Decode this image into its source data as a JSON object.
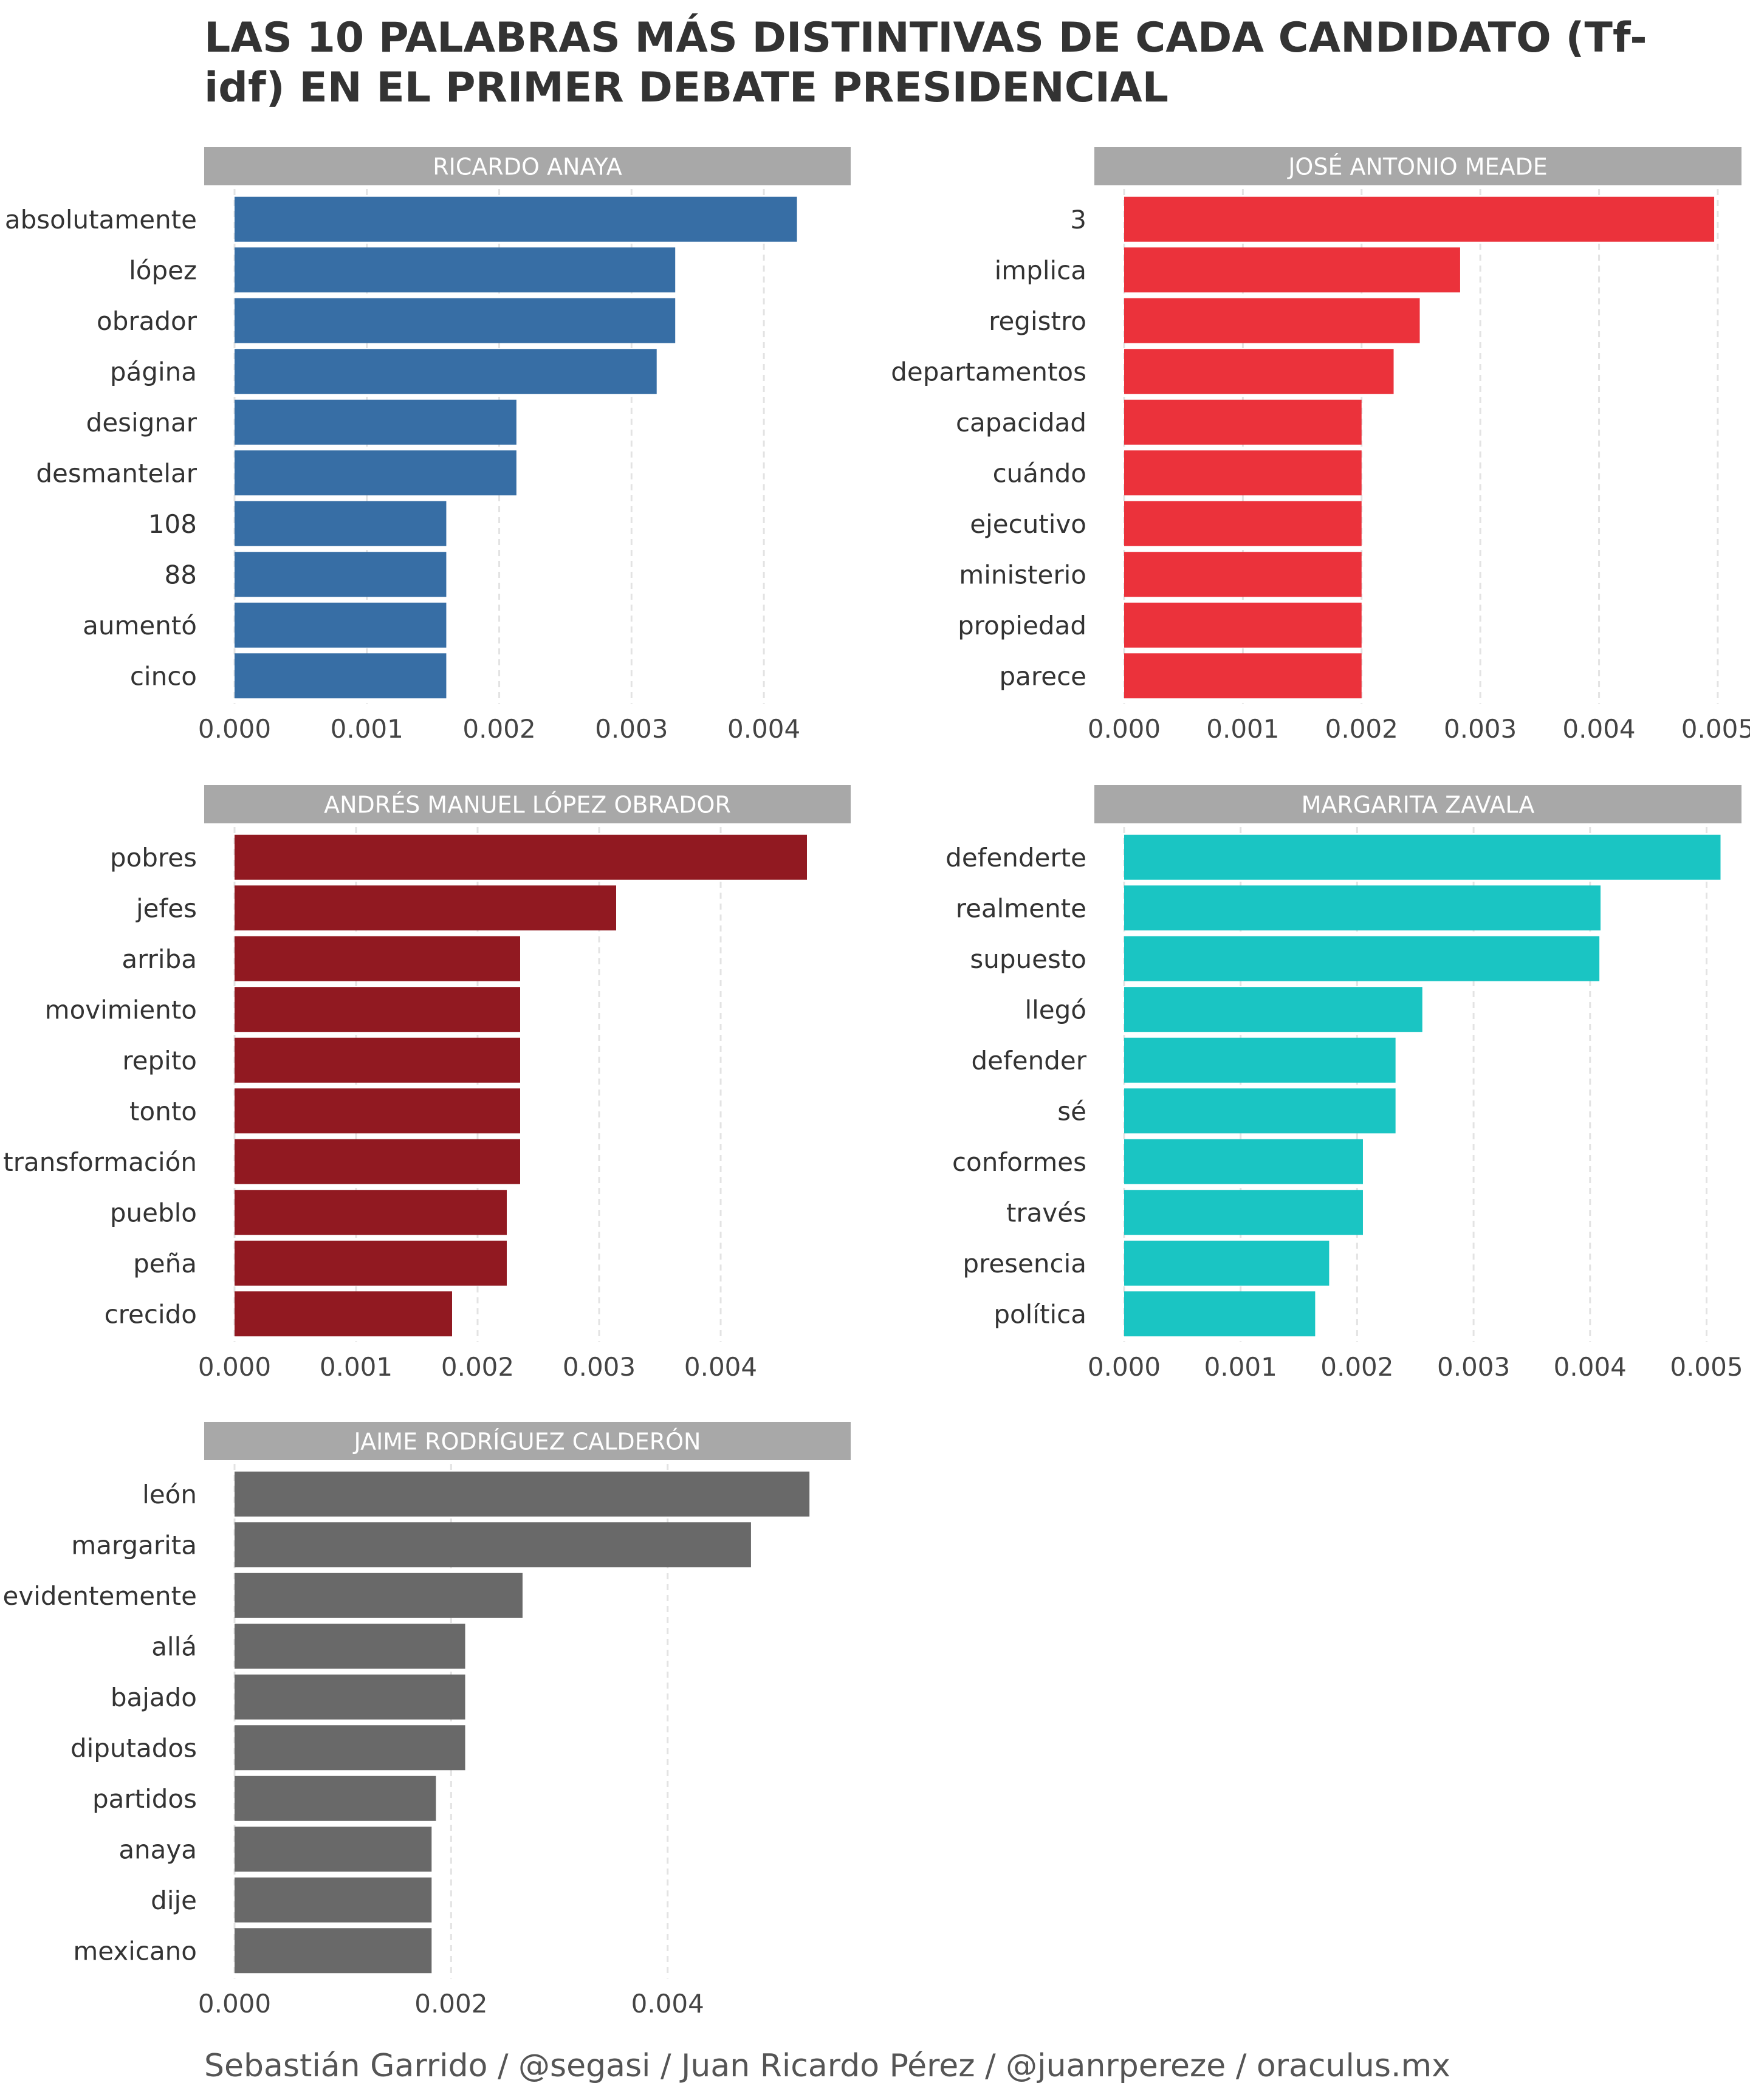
{
  "title": "LAS 10 PALABRAS MÁS DISTINTIVAS DE CADA CANDIDATO (Tf-idf) EN EL PRIMER DEBATE PRESIDENCIAL",
  "caption": "Sebastián Garrido / @segasi / Juan Ricardo Pérez / @juanrpereze / oraculus.mx",
  "chart_data": [
    {
      "type": "bar",
      "orientation": "horizontal",
      "title": "RICARDO ANAYA",
      "color": "#376EA5",
      "categories": [
        "absolutamente",
        "lópez",
        "obrador",
        "página",
        "designar",
        "desmantelar",
        "108",
        "88",
        "aumentó",
        "cinco"
      ],
      "values": [
        0.00425,
        0.00333,
        0.00333,
        0.00319,
        0.00213,
        0.00213,
        0.0016,
        0.0016,
        0.0016,
        0.0016
      ],
      "xlim": [
        0,
        0.0045
      ],
      "xticks": [
        "0.000",
        "0.001",
        "0.002",
        "0.003",
        "0.004"
      ],
      "tick_values": [
        0,
        0.001,
        0.002,
        0.003,
        0.004
      ]
    },
    {
      "type": "bar",
      "orientation": "horizontal",
      "title": "JOSÉ ANTONIO MEADE",
      "color": "#EB323B",
      "categories": [
        "3",
        "implica",
        "registro",
        "departamentos",
        "capacidad",
        "cuándo",
        "ejecutivo",
        "ministerio",
        "propiedad",
        "parece"
      ],
      "values": [
        0.00497,
        0.00283,
        0.00249,
        0.00227,
        0.002,
        0.002,
        0.002,
        0.002,
        0.002,
        0.002
      ],
      "xlim": [
        0,
        0.0052
      ],
      "xticks": [
        "0.000",
        "0.001",
        "0.002",
        "0.003",
        "0.004",
        "0.005"
      ],
      "tick_values": [
        0,
        0.001,
        0.002,
        0.003,
        0.004,
        0.005
      ]
    },
    {
      "type": "bar",
      "orientation": "horizontal",
      "title": "ANDRÉS MANUEL LÓPEZ OBRADOR",
      "color": "#911921",
      "categories": [
        "pobres",
        "jefes",
        "arriba",
        "movimiento",
        "repito",
        "tonto",
        "transformación",
        "pueblo",
        "peña",
        "crecido"
      ],
      "values": [
        0.00471,
        0.00314,
        0.00235,
        0.00235,
        0.00235,
        0.00235,
        0.00235,
        0.00224,
        0.00224,
        0.00179
      ],
      "xlim": [
        0,
        0.0049
      ],
      "xticks": [
        "0.000",
        "0.001",
        "0.002",
        "0.003",
        "0.004"
      ],
      "tick_values": [
        0,
        0.001,
        0.002,
        0.003,
        0.004
      ]
    },
    {
      "type": "bar",
      "orientation": "horizontal",
      "title": "MARGARITA ZAVALA",
      "color": "#1AC5C3",
      "categories": [
        "defenderte",
        "realmente",
        "supuesto",
        "llegó",
        "defender",
        "sé",
        "conformes",
        "través",
        "presencia",
        "política"
      ],
      "values": [
        0.00512,
        0.00409,
        0.00408,
        0.00256,
        0.00233,
        0.00233,
        0.00205,
        0.00205,
        0.00176,
        0.00164
      ],
      "xlim": [
        0,
        0.0053
      ],
      "xticks": [
        "0.000",
        "0.001",
        "0.002",
        "0.003",
        "0.004",
        "0.005"
      ],
      "tick_values": [
        0,
        0.001,
        0.002,
        0.003,
        0.004,
        0.005
      ]
    },
    {
      "type": "bar",
      "orientation": "horizontal",
      "title": "JAIME RODRÍGUEZ CALDERÓN",
      "color": "#696969",
      "categories": [
        "león",
        "margarita",
        "evidentemente",
        "allá",
        "bajado",
        "diputados",
        "partidos",
        "anaya",
        "dije",
        "mexicano"
      ],
      "values": [
        0.00531,
        0.00477,
        0.00266,
        0.00213,
        0.00213,
        0.00213,
        0.00186,
        0.00182,
        0.00182,
        0.00182
      ],
      "xlim": [
        0,
        0.0055
      ],
      "xticks": [
        "0.000",
        "0.002",
        "0.004"
      ],
      "tick_values": [
        0,
        0.002,
        0.004
      ]
    }
  ]
}
